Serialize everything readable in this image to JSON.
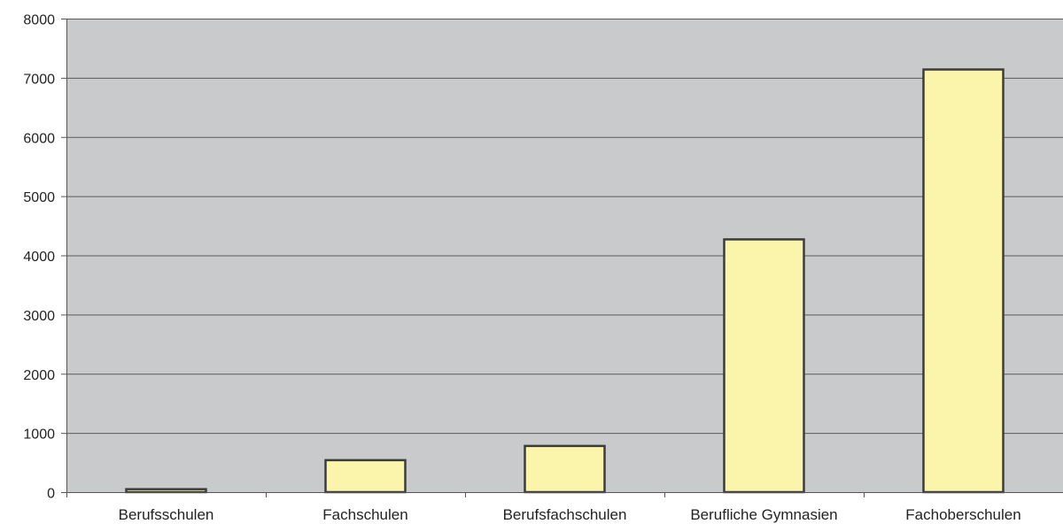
{
  "chart_data": {
    "type": "bar",
    "categories": [
      "Berufsschulen",
      "Fachschulen",
      "Berufsfachschulen",
      "Berufliche Gymnasien",
      "Fachoberschulen"
    ],
    "values": [
      50,
      540,
      780,
      4270,
      7140
    ],
    "title": "",
    "xlabel": "",
    "ylabel": "",
    "ylim": [
      0,
      8000
    ],
    "yticks": [
      "0",
      "1000",
      "2000",
      "3000",
      "4000",
      "5000",
      "6000",
      "7000",
      "8000"
    ],
    "grid": true,
    "legend": "none",
    "colors": {
      "plot_background": "#c9cacc",
      "bar_fill": "#faf5aa",
      "bar_stroke": "#3c3c3c",
      "gridline": "#5a5a5a",
      "axis": "#555555"
    }
  }
}
